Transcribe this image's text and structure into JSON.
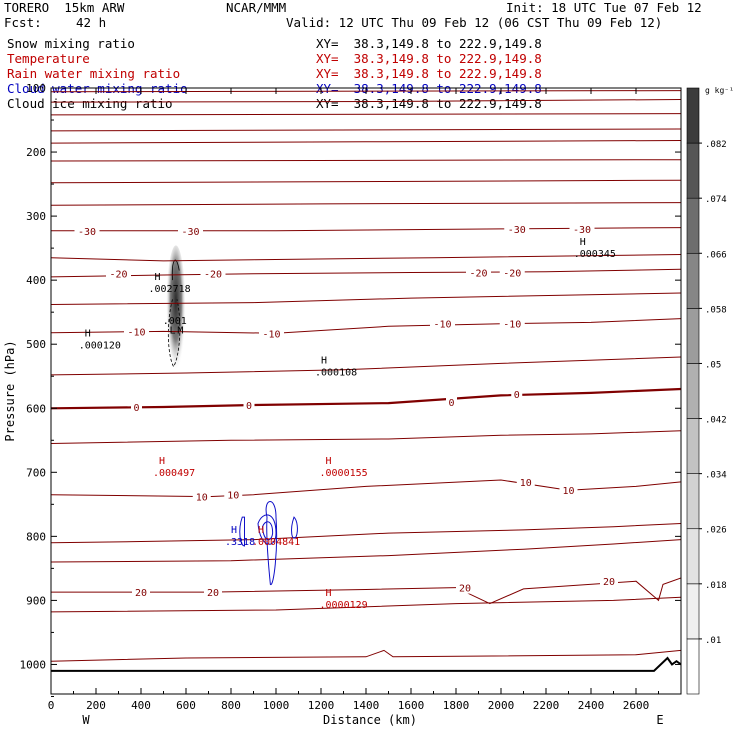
{
  "header": {
    "model": "TORERO  15km ARW",
    "center": "NCAR/MMM",
    "init": "Init: 18 UTC Tue 07 Feb 12",
    "fcst_label": "Fcst:",
    "fcst_value": "42 h",
    "valid": "Valid: 12 UTC Thu 09 Feb 12 (06 CST Thu 09 Feb 12)"
  },
  "fields": [
    {
      "name": "Snow mixing ratio",
      "color": "#000000",
      "xy": "XY=  38.3,149.8 to 222.9,149.8",
      "xy_color": "#000000"
    },
    {
      "name": "Temperature",
      "color": "#c00000",
      "xy": "XY=  38.3,149.8 to 222.9,149.8",
      "xy_color": "#c00000"
    },
    {
      "name": "Rain water mixing ratio",
      "color": "#c00000",
      "xy": "XY=  38.3,149.8 to 222.9,149.8",
      "xy_color": "#c00000"
    },
    {
      "name": "Cloud water mixing ratio",
      "color": "#0000c0",
      "xy": "XY=  38.3,149.8 to 222.9,149.8",
      "xy_color": "#0000c0"
    },
    {
      "name": "Cloud ice mixing ratio",
      "color": "#000000",
      "xy": "XY=  38.3,149.8 to 222.9,149.8",
      "xy_color": "#000000"
    }
  ],
  "chart_data": {
    "type": "cross-section contour",
    "xlabel": "Distance (km)",
    "ylabel": "Pressure (hPa)",
    "xlim": [
      0,
      2800
    ],
    "ylim": [
      1050,
      100
    ],
    "x_ticks": [
      "0",
      "200",
      "400",
      "600",
      "800",
      "1000",
      "1200",
      "1400",
      "1600",
      "1800",
      "2000",
      "2200",
      "2400",
      "2600"
    ],
    "y_ticks": [
      "100",
      "200",
      "300",
      "400",
      "500",
      "600",
      "700",
      "800",
      "900",
      "1000"
    ],
    "endpoints": {
      "west": "W",
      "east": "E"
    },
    "colorbar": {
      "unit": "g kg⁻¹",
      "levels": [
        ".01",
        ".018",
        ".026",
        ".034",
        ".042",
        ".05",
        ".058",
        ".066",
        ".074",
        ".082"
      ],
      "colors": [
        "#ffffff",
        "#f0f0f0",
        "#e2e2e2",
        "#d2d2d2",
        "#c2c2c2",
        "#b0b0b0",
        "#9c9c9c",
        "#868686",
        "#6e6e6e",
        "#565656",
        "#3c3c3c"
      ]
    },
    "temperature_isotherms_c": [
      -30,
      -20,
      -10,
      0,
      10,
      20
    ],
    "temperature_labels": [
      {
        "text": "-30",
        "x": 160,
        "p": 323
      },
      {
        "text": "-30",
        "x": 620,
        "p": 323
      },
      {
        "text": "-30",
        "x": 2070,
        "p": 320
      },
      {
        "text": "-30",
        "x": 2360,
        "p": 320
      },
      {
        "text": "-20",
        "x": 300,
        "p": 390
      },
      {
        "text": "-20",
        "x": 720,
        "p": 390
      },
      {
        "text": "-20",
        "x": 1900,
        "p": 388
      },
      {
        "text": "-20",
        "x": 2050,
        "p": 388
      },
      {
        "text": "-10",
        "x": 380,
        "p": 480
      },
      {
        "text": "-10",
        "x": 980,
        "p": 483
      },
      {
        "text": "-10",
        "x": 1740,
        "p": 468
      },
      {
        "text": "-10",
        "x": 2050,
        "p": 468
      },
      {
        "text": "0",
        "x": 380,
        "p": 598
      },
      {
        "text": "0",
        "x": 880,
        "p": 595
      },
      {
        "text": "0",
        "x": 1780,
        "p": 590
      },
      {
        "text": "0",
        "x": 2070,
        "p": 578
      },
      {
        "text": "10",
        "x": 670,
        "p": 738
      },
      {
        "text": "10",
        "x": 810,
        "p": 735
      },
      {
        "text": "10",
        "x": 2110,
        "p": 715
      },
      {
        "text": "10",
        "x": 2300,
        "p": 728
      },
      {
        "text": "20",
        "x": 400,
        "p": 887
      },
      {
        "text": "20",
        "x": 720,
        "p": 887
      },
      {
        "text": "20",
        "x": 1840,
        "p": 880
      },
      {
        "text": "20",
        "x": 2480,
        "p": 870
      }
    ],
    "extrema": [
      {
        "mark": "H",
        "value": ".000345",
        "x": 2350,
        "p": 345,
        "color": "#000000"
      },
      {
        "mark": "H",
        "value": ".002718",
        "x": 460,
        "p": 400,
        "color": "#000000"
      },
      {
        "mark": "H",
        "value": ".000120",
        "x": 150,
        "p": 488,
        "color": "#000000"
      },
      {
        "mark": "H",
        "value": ".000108",
        "x": 1200,
        "p": 530,
        "color": "#000000"
      },
      {
        "mark": "H",
        "value": ".000497",
        "x": 480,
        "p": 687,
        "color": "#c00000"
      },
      {
        "mark": "H",
        "value": ".0000155",
        "x": 1220,
        "p": 687,
        "color": "#c00000"
      },
      {
        "mark": "H",
        "value": ".3318",
        "x": 800,
        "p": 795,
        "color": "#0000c0"
      },
      {
        "mark": "H",
        "value": ".0004841",
        "x": 920,
        "p": 795,
        "color": "#c00000"
      },
      {
        "mark": "H",
        "value": ".0000129",
        "x": 1220,
        "p": 893,
        "color": "#c00000"
      }
    ],
    "inner_labels": [
      {
        "text": ".001",
        "x": 550,
        "p": 462
      },
      {
        "text": "L",
        "x": 540,
        "p": 477
      },
      {
        "text": "M",
        "x": 575,
        "p": 477
      }
    ]
  }
}
